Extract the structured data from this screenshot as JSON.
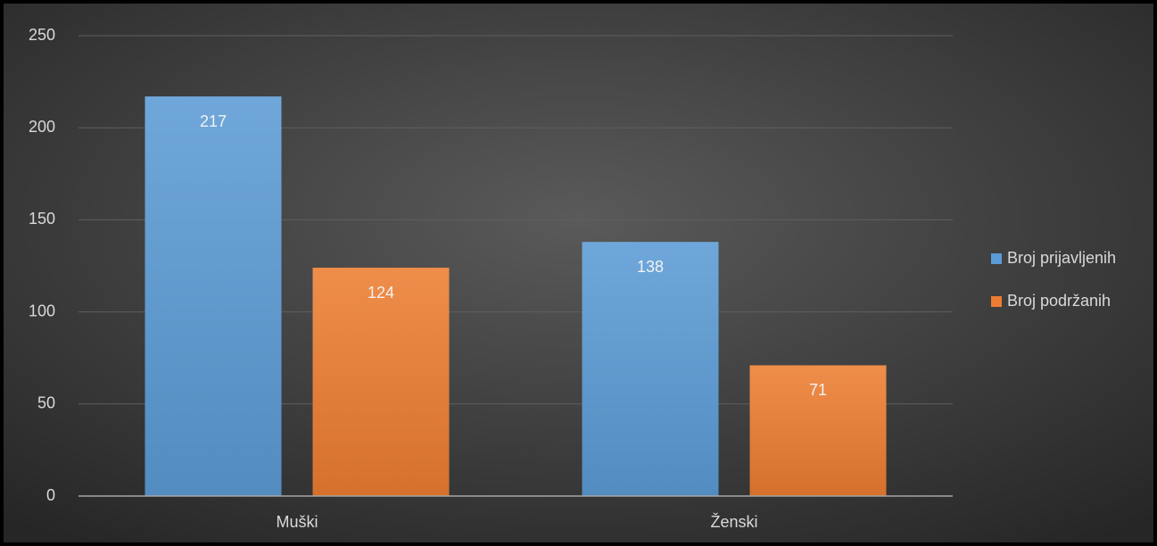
{
  "chart_data": {
    "type": "bar",
    "categories": [
      "Muški",
      "Ženski"
    ],
    "series": [
      {
        "name": "Broj prijavljenih",
        "color": "#5b9bd5",
        "values": [
          217,
          138
        ]
      },
      {
        "name": "Broj podržanih",
        "color": "#ed7d31",
        "values": [
          124,
          71
        ]
      }
    ],
    "ylim": [
      0,
      250
    ],
    "yticks": [
      0,
      50,
      100,
      150,
      200,
      250
    ],
    "grid": true,
    "legend": "right"
  }
}
